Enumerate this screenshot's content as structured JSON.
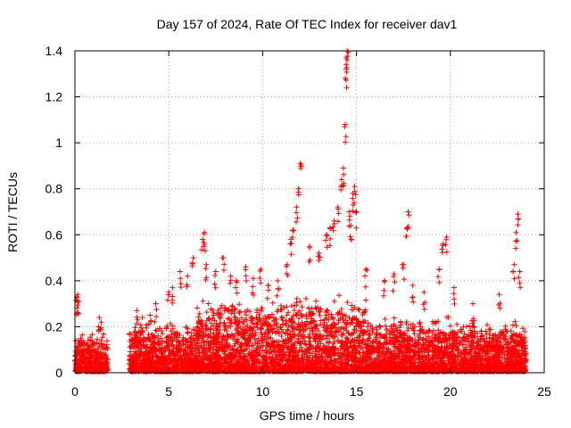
{
  "chart_data": {
    "type": "scatter",
    "title": "Day 157 of 2024, Rate Of TEC Index for receiver dav1",
    "xlabel": "GPS time / hours",
    "ylabel": "ROTI / TECUs",
    "xlim": [
      0,
      25
    ],
    "ylim": [
      0,
      1.4
    ],
    "xticks": [
      "0",
      "5",
      "10",
      "15",
      "20",
      "25"
    ],
    "yticks": [
      "0",
      "0.2",
      "0.4",
      "0.6",
      "0.8",
      "1",
      "1.2",
      "1.4"
    ],
    "grid": true,
    "marker": "+",
    "series": [
      {
        "name": "ROTI",
        "color": "#ff0000",
        "segments": [
          {
            "x": [
              0.0,
              1.75
            ],
            "ymax": 0.17
          },
          {
            "x": [
              2.9,
              6.5
            ],
            "ymax": 0.22
          },
          {
            "x": [
              6.5,
              11.5
            ],
            "ymax": 0.32
          },
          {
            "x": [
              11.5,
              15.5
            ],
            "ymax": 0.34
          },
          {
            "x": [
              15.5,
              20.0
            ],
            "ymax": 0.24
          },
          {
            "x": [
              20.0,
              24.05
            ],
            "ymax": 0.22
          }
        ],
        "outliers": {
          "x": [
            0.1,
            0.15,
            0.2,
            1.3,
            1.4,
            3.3,
            3.6,
            4.0,
            4.3,
            5.0,
            5.2,
            5.6,
            6.0,
            6.3,
            6.8,
            6.9,
            7.0,
            7.5,
            7.9,
            8.3,
            8.6,
            9.1,
            9.5,
            9.9,
            10.3,
            10.8,
            11.3,
            11.5,
            11.6,
            11.8,
            11.9,
            12.0,
            12.5,
            13.0,
            13.4,
            13.6,
            13.8,
            14.0,
            14.2,
            14.3,
            14.4,
            14.45,
            14.5,
            14.5,
            14.6,
            14.7,
            14.8,
            14.9,
            15.0,
            15.5,
            16.5,
            17.0,
            17.5,
            17.7,
            17.75,
            18.0,
            18.6,
            19.4,
            19.6,
            19.8,
            20.2,
            21.2,
            22.6,
            23.4,
            23.5,
            23.6,
            23.7
          ],
          "y": [
            0.33,
            0.34,
            0.31,
            0.24,
            0.22,
            0.27,
            0.24,
            0.25,
            0.3,
            0.35,
            0.37,
            0.44,
            0.42,
            0.5,
            0.58,
            0.61,
            0.47,
            0.44,
            0.5,
            0.42,
            0.4,
            0.46,
            0.41,
            0.45,
            0.38,
            0.4,
            0.47,
            0.58,
            0.62,
            0.72,
            0.8,
            0.91,
            0.55,
            0.52,
            0.6,
            0.63,
            0.66,
            0.72,
            0.84,
            0.89,
            1.08,
            1.32,
            1.36,
            1.4,
            0.7,
            0.64,
            0.78,
            0.81,
            0.7,
            0.45,
            0.4,
            0.43,
            0.47,
            0.63,
            0.7,
            0.38,
            0.35,
            0.45,
            0.56,
            0.59,
            0.37,
            0.3,
            0.34,
            0.47,
            0.61,
            0.69,
            0.44
          ]
        }
      }
    ]
  },
  "colors": {
    "series": "#ff0000",
    "grid": "#a0a0a0",
    "axis": "#000000"
  }
}
